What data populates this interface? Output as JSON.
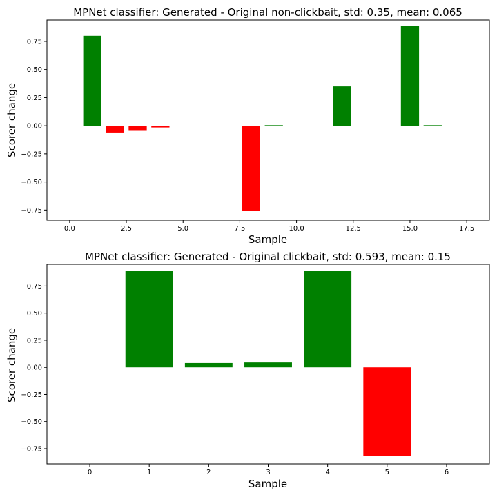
{
  "chart_data": [
    {
      "type": "bar",
      "title": "MPNet classifier: Generated - Original non-clickbait, std: 0.35, mean: 0.065",
      "xlabel": "Sample",
      "ylabel": "Scorer change",
      "xlim": [
        -1.0,
        18.5
      ],
      "ylim": [
        -0.84,
        0.94
      ],
      "xticks": [
        "0.0",
        "2.5",
        "5.0",
        "7.5",
        "10.0",
        "12.5",
        "15.0",
        "17.5"
      ],
      "xtick_values": [
        0,
        2.5,
        5,
        7.5,
        10,
        12.5,
        15,
        17.5
      ],
      "yticks": [
        "−0.75",
        "−0.50",
        "−0.25",
        "0.00",
        "0.25",
        "0.50",
        "0.75"
      ],
      "ytick_values": [
        -0.75,
        -0.5,
        -0.25,
        0,
        0.25,
        0.5,
        0.75
      ],
      "bar_width": 0.8,
      "x": [
        0,
        1,
        2,
        3,
        4,
        5,
        6,
        7,
        8,
        9,
        10,
        11,
        12,
        13,
        14,
        15,
        16,
        17
      ],
      "values": [
        0.0,
        0.8,
        -0.06,
        -0.045,
        -0.015,
        0.0,
        0.0,
        0.0,
        -0.76,
        0.005,
        0.0,
        0.0,
        0.35,
        0.0,
        0.0,
        0.89,
        0.005,
        0.0
      ],
      "colors": {
        "positive": "#008000",
        "negative": "#ff0000"
      },
      "grid": false
    },
    {
      "type": "bar",
      "title": "MPNet classifier: Generated - Original clickbait, std: 0.593, mean: 0.15",
      "xlabel": "Sample",
      "ylabel": "Scorer change",
      "xlim": [
        -0.72,
        6.72
      ],
      "ylim": [
        -0.89,
        0.95
      ],
      "xticks": [
        "0",
        "1",
        "2",
        "3",
        "4",
        "5",
        "6"
      ],
      "xtick_values": [
        0,
        1,
        2,
        3,
        4,
        5,
        6
      ],
      "yticks": [
        "−0.75",
        "−0.50",
        "−0.25",
        "0.00",
        "0.25",
        "0.50",
        "0.75"
      ],
      "ytick_values": [
        -0.75,
        -0.5,
        -0.25,
        0,
        0.25,
        0.5,
        0.75
      ],
      "bar_width": 0.8,
      "x": [
        0,
        1,
        2,
        3,
        4,
        5,
        6
      ],
      "values": [
        0.0,
        0.89,
        0.04,
        0.045,
        0.89,
        -0.82,
        0.0
      ],
      "colors": {
        "positive": "#008000",
        "negative": "#ff0000"
      },
      "grid": false
    }
  ]
}
